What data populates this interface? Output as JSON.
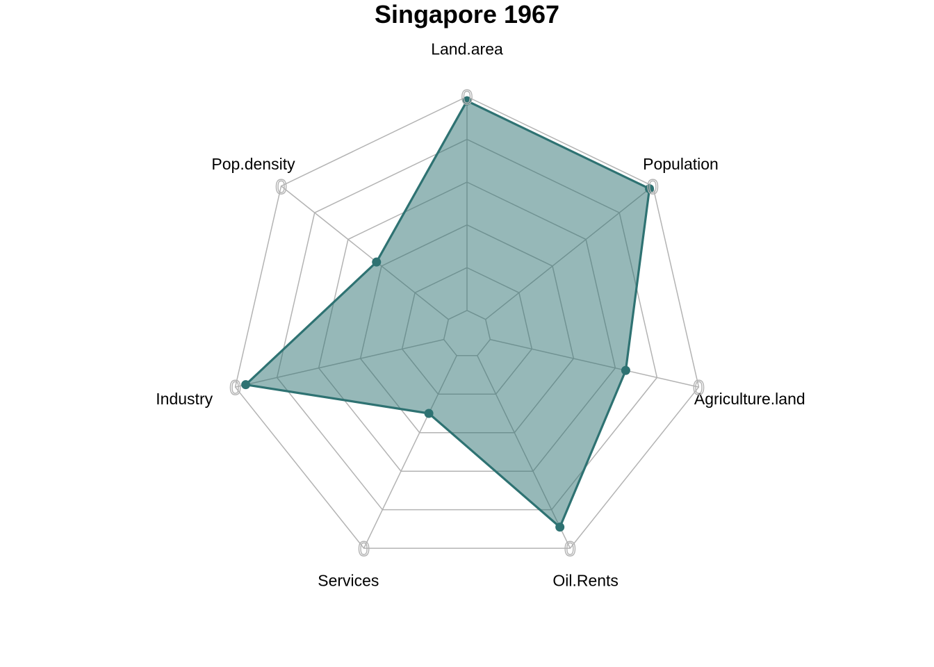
{
  "chart_data": {
    "type": "radar",
    "title": "Singapore 1967",
    "axes": [
      "Land.area",
      "Population",
      "Agriculture.land",
      "Oil.Rents",
      "Services",
      "Industry",
      "Pop.density"
    ],
    "series": [
      {
        "values": [
          0.98,
          0.98,
          0.65,
          0.89,
          0.3,
          0.95,
          0.43
        ]
      }
    ],
    "axis_tick_label": "0",
    "range": [
      0,
      1
    ],
    "grid_levels": 6,
    "colors": {
      "series_line": "#2e7272",
      "series_fill": "#2e7272",
      "series_fill_opacity": 0.5,
      "grid": "#b3b3b3"
    }
  }
}
